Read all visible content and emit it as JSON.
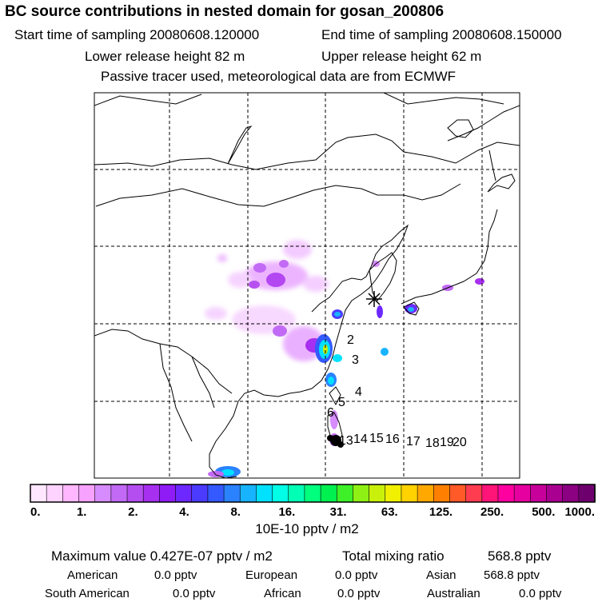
{
  "header": {
    "title": "BC  source contributions in nested domain for gosan_200806",
    "start_label": "Start time of sampling 20080608.120000",
    "end_label": "End time of sampling 20080608.150000",
    "lower_label": "Lower release height   82 m",
    "upper_label": "Upper release height   62 m",
    "note": "Passive tracer used, meteorological data are from ECMWF"
  },
  "map": {
    "receptor_marker": "asterisk-icon",
    "trajectory_labels": [
      "2",
      "3",
      "4",
      "5",
      "6",
      "13",
      "14",
      "15",
      "16",
      "17",
      "18",
      "19",
      "20"
    ]
  },
  "colorbar": {
    "tick_labels": [
      "0.",
      "1.",
      "2.",
      "4.",
      "8.",
      "16.",
      "31.",
      "63.",
      "125.",
      "250.",
      "500.",
      "1000."
    ],
    "unit": "10E-10 pptv / m2",
    "colors": [
      "#ffe8ff",
      "#ffd3ff",
      "#ffb8ff",
      "#f7a2ff",
      "#d68cff",
      "#c26af5",
      "#b44ef0",
      "#a62ff0",
      "#8f1cf5",
      "#6d28ff",
      "#4a3bff",
      "#3359ff",
      "#2a82ff",
      "#18b3ff",
      "#00e1ff",
      "#00ffe6",
      "#00ffb4",
      "#00ff7d",
      "#00f050",
      "#3df028",
      "#8ef014",
      "#c8f00a",
      "#f0f000",
      "#ffd200",
      "#ffa800",
      "#ff8000",
      "#ff5a28",
      "#ff3c50",
      "#ff1478",
      "#ff00a0",
      "#e600a0",
      "#c8009b",
      "#aa0091",
      "#8c0082",
      "#6e006e"
    ]
  },
  "stats": {
    "max_label": "Maximum value  0.427E-07 pptv / m2",
    "total_label": "Total mixing ratio",
    "total_value": "568.8 pptv",
    "regions": [
      {
        "name": "American",
        "value": "0.0 pptv"
      },
      {
        "name": "European",
        "value": "0.0 pptv"
      },
      {
        "name": "Asian",
        "value": "568.8 pptv"
      },
      {
        "name": "South American",
        "value": "0.0 pptv"
      },
      {
        "name": "African",
        "value": "0.0 pptv"
      },
      {
        "name": "Australian",
        "value": "0.0 pptv"
      }
    ]
  }
}
